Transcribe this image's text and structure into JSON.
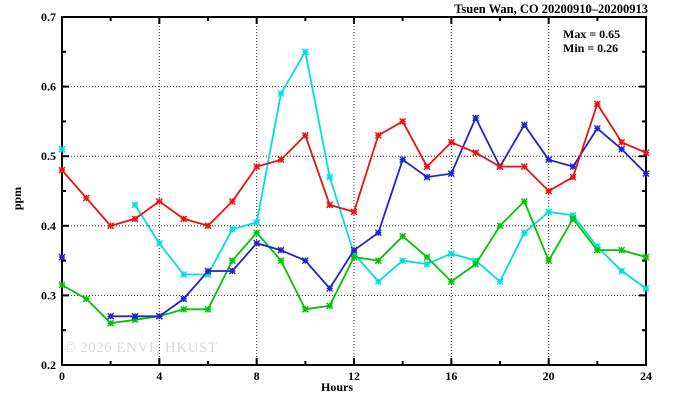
{
  "header": {
    "title": "Tsuen Wan, CO 20200910–20200913"
  },
  "annotation": {
    "max_label": "Max = 0.65",
    "min_label": "Min = 0.26"
  },
  "watermark": "© 2026 ENVF, HKUST",
  "chart_data": {
    "type": "line",
    "title": "Tsuen Wan, CO 20200910–20200913",
    "xlabel": "Hours",
    "ylabel": "ppm",
    "xlim": [
      0,
      24
    ],
    "ylim": [
      0.2,
      0.7
    ],
    "x_major_ticks": [
      0,
      4,
      8,
      12,
      16,
      20,
      24
    ],
    "x_minor_ticks": [
      2,
      6,
      10,
      14,
      18,
      22
    ],
    "x_tick_labels": [
      "0",
      "4",
      "8",
      "12",
      "16",
      "20",
      "24"
    ],
    "y_major_ticks": [
      0.2,
      0.3,
      0.4,
      0.5,
      0.6,
      0.7
    ],
    "y_minor_ticks": [
      0.25,
      0.35,
      0.45,
      0.55,
      0.65
    ],
    "y_tick_labels": [
      "0.2",
      "0.3",
      "0.4",
      "0.5",
      "0.6",
      "0.7"
    ],
    "grid_x": [
      4,
      8,
      12,
      16,
      20
    ],
    "grid_y": [
      0.3,
      0.4,
      0.5,
      0.6
    ],
    "legend_position": "none",
    "grid": "dotted",
    "stat_max": 0.65,
    "stat_min": 0.26,
    "x": [
      0,
      1,
      2,
      3,
      4,
      5,
      6,
      7,
      8,
      9,
      10,
      11,
      12,
      13,
      14,
      15,
      16,
      17,
      18,
      19,
      20,
      21,
      22,
      23,
      24
    ],
    "series": [
      {
        "name": "cyan-series",
        "color": "#00dfdf",
        "values": [
          0.51,
          null,
          null,
          0.43,
          0.375,
          0.33,
          0.33,
          0.395,
          0.405,
          0.59,
          0.65,
          0.47,
          0.36,
          0.32,
          0.35,
          0.345,
          0.36,
          0.35,
          0.32,
          0.39,
          0.42,
          0.415,
          0.37,
          0.335,
          0.31
        ]
      },
      {
        "name": "green-series",
        "color": "#00c400",
        "values": [
          0.315,
          0.295,
          0.26,
          0.265,
          0.27,
          0.28,
          0.28,
          0.35,
          0.39,
          0.35,
          0.28,
          0.285,
          0.355,
          0.35,
          0.385,
          0.355,
          0.32,
          0.345,
          0.4,
          0.435,
          0.35,
          0.41,
          0.365,
          0.365,
          0.355
        ]
      },
      {
        "name": "blue-series",
        "color": "#2323cc",
        "values": [
          0.355,
          null,
          0.27,
          0.27,
          0.27,
          0.295,
          0.335,
          0.335,
          0.375,
          0.365,
          0.35,
          0.31,
          0.365,
          0.39,
          0.495,
          0.47,
          0.475,
          0.555,
          0.485,
          0.545,
          0.495,
          0.485,
          0.54,
          0.51,
          0.475
        ]
      },
      {
        "name": "red-series",
        "color": "#ee1111",
        "values": [
          0.48,
          0.44,
          0.4,
          0.41,
          0.435,
          0.41,
          0.4,
          0.435,
          0.485,
          0.495,
          0.53,
          0.43,
          0.42,
          0.53,
          0.55,
          0.485,
          0.52,
          0.505,
          0.485,
          0.485,
          0.45,
          0.47,
          0.575,
          0.52,
          0.505
        ]
      }
    ]
  }
}
